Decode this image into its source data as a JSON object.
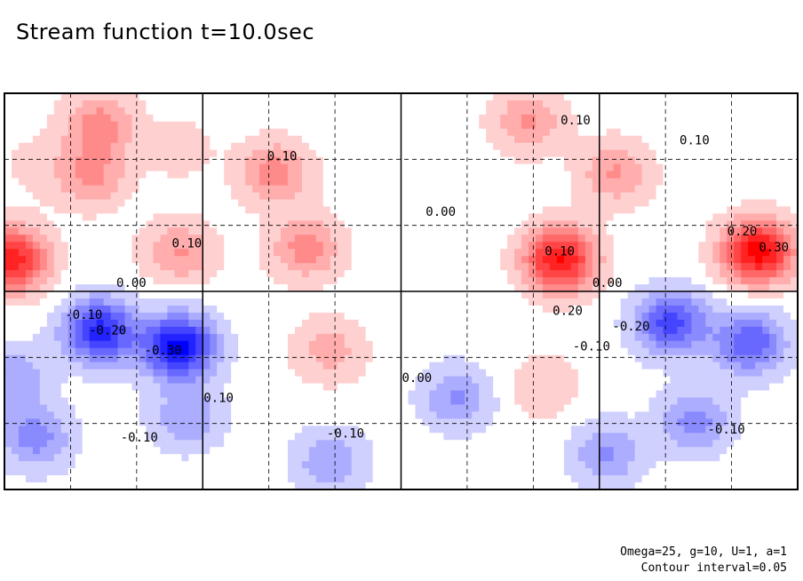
{
  "chart_data": {
    "type": "contour",
    "title": "Stream function t=10.0sec",
    "variable": "stream function",
    "time": "10.0sec",
    "contour_interval": 0.05,
    "parameters": {
      "Omega": 25,
      "g": 10,
      "U": 1,
      "a": 1
    },
    "footer_params": "Omega=25, g=10, U=1, a=1",
    "footer_interval": "Contour interval=0.05",
    "value_range": [
      -0.35,
      0.35
    ],
    "colors": {
      "positive": "#ff0000",
      "negative": "#0000ff",
      "zero": "#ffffff"
    },
    "grid": {
      "major_lines": "solid",
      "minor_lines": "dashed",
      "x_divisions": 12,
      "y_divisions": 6
    },
    "contour_labels": [
      {
        "text": "0.10",
        "x": 0.27,
        "y": 0.23
      },
      {
        "text": "0.10",
        "x": 0.35,
        "y": 0.84
      },
      {
        "text": "0.10",
        "x": 0.87,
        "y": 0.88
      },
      {
        "text": "0.10",
        "x": 0.72,
        "y": 0.93
      },
      {
        "text": "0.10",
        "x": 0.23,
        "y": 0.62
      },
      {
        "text": "0.00",
        "x": 0.16,
        "y": 0.52
      },
      {
        "text": "-0.10",
        "x": 0.1,
        "y": 0.44
      },
      {
        "text": "-0.20",
        "x": 0.13,
        "y": 0.4
      },
      {
        "text": "-0.30",
        "x": 0.2,
        "y": 0.35
      },
      {
        "text": "0.00",
        "x": 0.55,
        "y": 0.7
      },
      {
        "text": "0.10",
        "x": 0.7,
        "y": 0.6
      },
      {
        "text": "0.20",
        "x": 0.71,
        "y": 0.45
      },
      {
        "text": "0.00",
        "x": 0.76,
        "y": 0.52
      },
      {
        "text": "-0.20",
        "x": 0.79,
        "y": 0.41
      },
      {
        "text": "0.20",
        "x": 0.93,
        "y": 0.65
      },
      {
        "text": "0.30",
        "x": 0.97,
        "y": 0.61
      },
      {
        "text": "0.00",
        "x": 0.52,
        "y": 0.28
      },
      {
        "text": "-0.10",
        "x": 0.74,
        "y": 0.36
      },
      {
        "text": "-0.10",
        "x": 0.17,
        "y": 0.13
      },
      {
        "text": "-0.10",
        "x": 0.43,
        "y": 0.14
      },
      {
        "text": "-0.10",
        "x": 0.91,
        "y": 0.15
      }
    ],
    "extrema": [
      {
        "x": 0.01,
        "y": 0.58,
        "value": 0.3
      },
      {
        "x": 0.12,
        "y": 0.92,
        "value": 0.15
      },
      {
        "x": 0.11,
        "y": 0.79,
        "value": 0.13
      },
      {
        "x": 0.34,
        "y": 0.8,
        "value": 0.15
      },
      {
        "x": 0.38,
        "y": 0.61,
        "value": 0.15
      },
      {
        "x": 0.22,
        "y": 0.6,
        "value": 0.13
      },
      {
        "x": 0.41,
        "y": 0.35,
        "value": 0.1
      },
      {
        "x": 0.66,
        "y": 0.93,
        "value": 0.13
      },
      {
        "x": 0.77,
        "y": 0.8,
        "value": 0.13
      },
      {
        "x": 0.7,
        "y": 0.58,
        "value": 0.33
      },
      {
        "x": 0.95,
        "y": 0.6,
        "value": 0.35
      },
      {
        "x": 0.12,
        "y": 0.4,
        "value": -0.3
      },
      {
        "x": 0.22,
        "y": 0.36,
        "value": -0.35
      },
      {
        "x": 0.84,
        "y": 0.42,
        "value": -0.25
      },
      {
        "x": 0.94,
        "y": 0.37,
        "value": -0.22
      },
      {
        "x": 0.04,
        "y": 0.13,
        "value": -0.15
      },
      {
        "x": 0.23,
        "y": 0.18,
        "value": -0.12
      },
      {
        "x": 0.41,
        "y": 0.07,
        "value": -0.12
      },
      {
        "x": 0.57,
        "y": 0.23,
        "value": -0.13
      },
      {
        "x": 0.76,
        "y": 0.09,
        "value": -0.13
      },
      {
        "x": 0.87,
        "y": 0.17,
        "value": -0.15
      },
      {
        "x": 0.01,
        "y": 0.28,
        "value": -0.12
      },
      {
        "x": 0.68,
        "y": 0.26,
        "value": 0.07
      },
      {
        "x": 0.22,
        "y": 0.86,
        "value": 0.05
      },
      {
        "x": 0.04,
        "y": 0.82,
        "value": 0.04
      }
    ]
  }
}
